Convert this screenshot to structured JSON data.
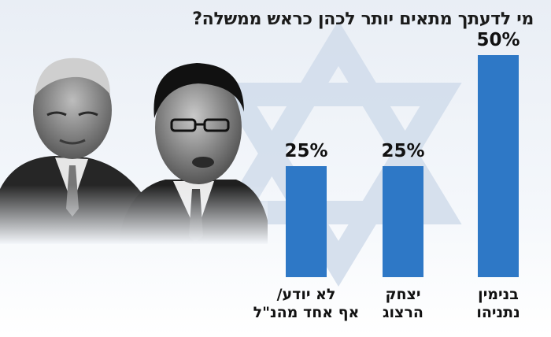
{
  "chart_data": {
    "type": "bar",
    "title": "מי לדעתך מתאים יותר לכהן כראש ממשלה?",
    "categories": [
      [
        "לא יודע/",
        "אף אחד מהנ\"ל"
      ],
      [
        "יצחק",
        "הרצוג"
      ],
      [
        "בנימין",
        "נתניהו"
      ]
    ],
    "values": [
      25,
      25,
      50
    ],
    "value_labels": [
      "25%",
      "25%",
      "50%"
    ],
    "ylim": [
      0,
      50
    ],
    "bar_color": "#2e78c6",
    "grid": false
  }
}
